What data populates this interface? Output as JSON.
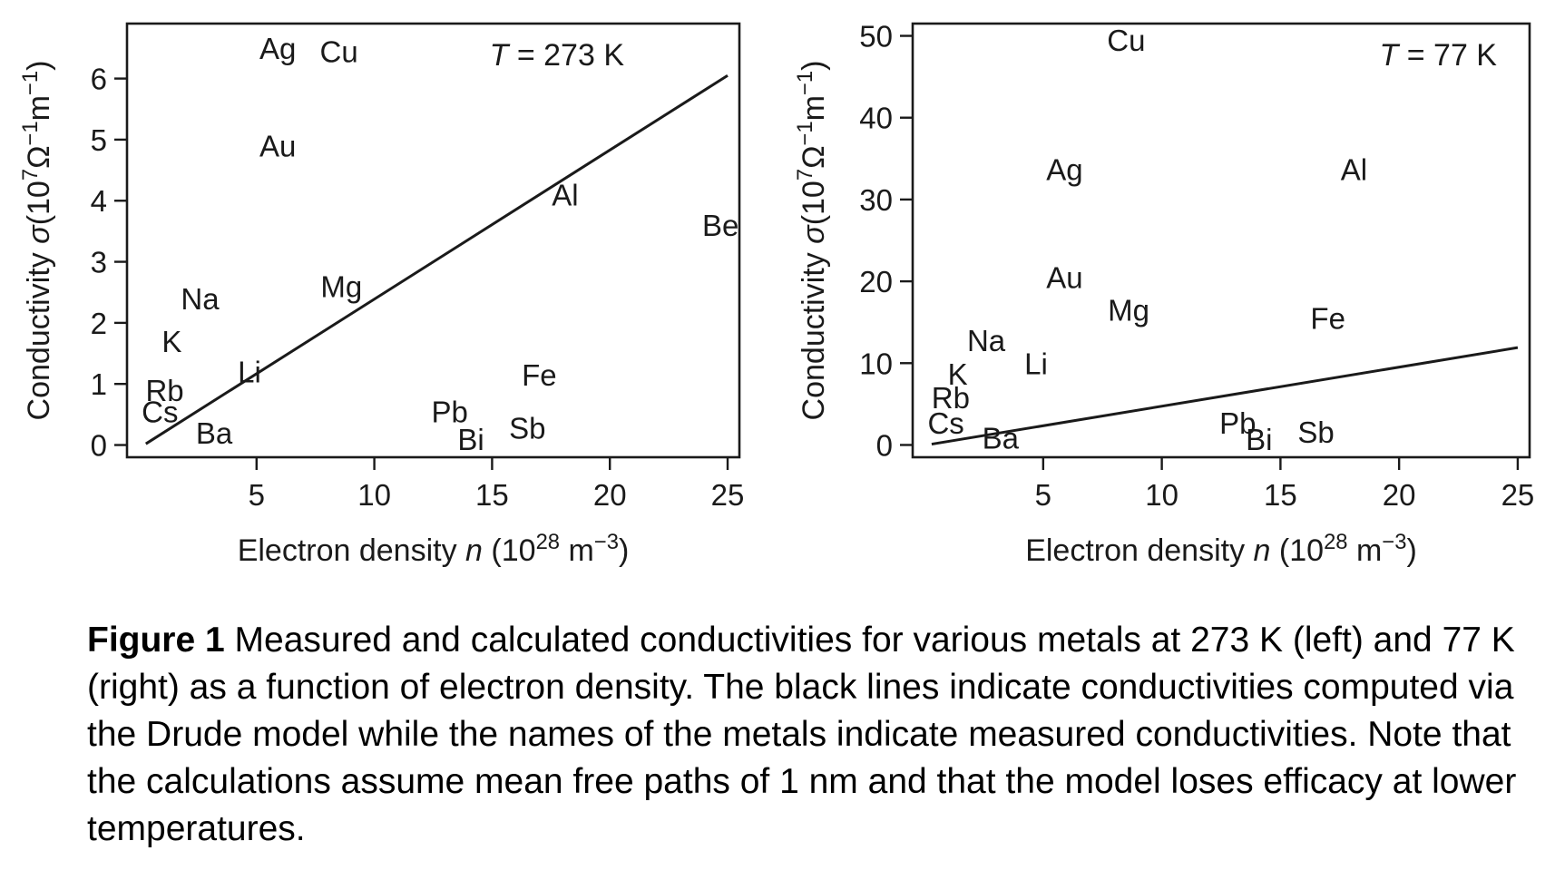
{
  "chart_data": [
    {
      "type": "scatter",
      "annotation": {
        "prefix": "T",
        "value": " = 273 K"
      },
      "xlabel": {
        "main": "Electron density ",
        "var": "n",
        "open": " (10",
        "exp1": "28",
        "unit": " m",
        "exp2": "−3",
        "close": ")"
      },
      "ylabel": {
        "main": "Conductivity ",
        "var": "σ",
        "open": "(10",
        "exp1": "7",
        "unit": "Ω",
        "exp2": "−1",
        "unit2": "m",
        "exp3": "−1",
        "close": ")"
      },
      "xlim": [
        -0.5,
        25.5
      ],
      "ylim": [
        -0.2,
        6.9
      ],
      "xticks": [
        5,
        10,
        15,
        20,
        25
      ],
      "xtick_labels": [
        "5",
        "10",
        "15",
        "20",
        "25"
      ],
      "yticks": [
        0,
        1,
        2,
        3,
        4,
        5,
        6
      ],
      "ytick_labels": [
        "0",
        "1",
        "2",
        "3",
        "4",
        "5",
        "6"
      ],
      "points": [
        {
          "label": "Ag",
          "x": 5.9,
          "y": 6.5
        },
        {
          "label": "Cu",
          "x": 8.5,
          "y": 6.45
        },
        {
          "label": "Au",
          "x": 5.9,
          "y": 4.9
        },
        {
          "label": "Al",
          "x": 18.1,
          "y": 4.1
        },
        {
          "label": "Be",
          "x": 24.7,
          "y": 3.6
        },
        {
          "label": "Mg",
          "x": 8.6,
          "y": 2.6
        },
        {
          "label": "Na",
          "x": 2.6,
          "y": 2.4
        },
        {
          "label": "K",
          "x": 1.4,
          "y": 1.7
        },
        {
          "label": "Li",
          "x": 4.7,
          "y": 1.2
        },
        {
          "label": "Rb",
          "x": 1.1,
          "y": 0.9
        },
        {
          "label": "Cs",
          "x": 0.9,
          "y": 0.55
        },
        {
          "label": "Ba",
          "x": 3.2,
          "y": 0.2
        },
        {
          "label": "Fe",
          "x": 17.0,
          "y": 1.15
        },
        {
          "label": "Pb",
          "x": 13.2,
          "y": 0.55
        },
        {
          "label": "Bi",
          "x": 14.1,
          "y": 0.1
        },
        {
          "label": "Sb",
          "x": 16.5,
          "y": 0.28
        }
      ],
      "drude_line": {
        "x": [
          0.3,
          25.0
        ],
        "y": [
          0.02,
          6.05
        ]
      }
    },
    {
      "type": "scatter",
      "annotation": {
        "prefix": "T",
        "value": " = 77 K"
      },
      "xlabel": {
        "main": "Electron density ",
        "var": "n",
        "open": " (10",
        "exp1": "28",
        "unit": " m",
        "exp2": "−3",
        "close": ")"
      },
      "ylabel": {
        "main": "Conductivity ",
        "var": "σ",
        "open": "(10",
        "exp1": "7",
        "unit": "Ω",
        "exp2": "−1",
        "unit2": "m",
        "exp3": "−1",
        "close": ")"
      },
      "xlim": [
        -0.5,
        25.5
      ],
      "ylim": [
        -1.5,
        51.5
      ],
      "xticks": [
        5,
        10,
        15,
        20,
        25
      ],
      "xtick_labels": [
        "5",
        "10",
        "15",
        "20",
        "25"
      ],
      "yticks": [
        0,
        10,
        20,
        30,
        40,
        50
      ],
      "ytick_labels": [
        "0",
        "10",
        "20",
        "30",
        "40",
        "50"
      ],
      "points": [
        {
          "label": "Cu",
          "x": 8.5,
          "y": 49.5
        },
        {
          "label": "Ag",
          "x": 5.9,
          "y": 33.7
        },
        {
          "label": "Al",
          "x": 18.1,
          "y": 33.7
        },
        {
          "label": "Au",
          "x": 5.9,
          "y": 20.5
        },
        {
          "label": "Mg",
          "x": 8.6,
          "y": 16.5
        },
        {
          "label": "Fe",
          "x": 17.0,
          "y": 15.5
        },
        {
          "label": "Na",
          "x": 2.6,
          "y": 12.8
        },
        {
          "label": "Li",
          "x": 4.7,
          "y": 10.0
        },
        {
          "label": "K",
          "x": 1.4,
          "y": 8.7
        },
        {
          "label": "Rb",
          "x": 1.1,
          "y": 5.8
        },
        {
          "label": "Cs",
          "x": 0.9,
          "y": 2.7
        },
        {
          "label": "Ba",
          "x": 3.2,
          "y": 0.9
        },
        {
          "label": "Pb",
          "x": 13.2,
          "y": 2.7
        },
        {
          "label": "Bi",
          "x": 14.1,
          "y": 0.7
        },
        {
          "label": "Sb",
          "x": 16.5,
          "y": 1.6
        }
      ],
      "drude_line": {
        "x": [
          0.3,
          25.0
        ],
        "y": [
          0.1,
          11.9
        ]
      }
    }
  ],
  "caption": {
    "label": "Figure 1",
    "text": " Measured and calculated conductivities for various metals at 273 K (left) and 77 K (right) as a function of electron density. The black lines indicate conductivities computed via the Drude model while the names of the metals indicate measured conductivities. Note that the calculations assume mean free paths of 1 nm and that the model loses efficacy at lower temperatures."
  }
}
